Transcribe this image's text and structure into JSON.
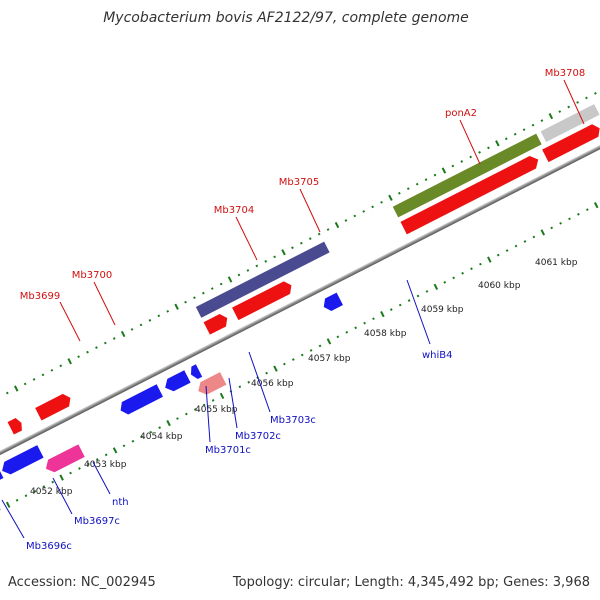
{
  "header": {
    "title": "Mycobacterium bovis AF2122/97, complete genome"
  },
  "footer": {
    "accession": "Accession: NC_002945",
    "summary": "Topology: circular; Length: 4,345,492 bp; Genes: 3,968"
  },
  "colors": {
    "forward_gene": "#ee1111",
    "reverse_gene": "#1a1aee",
    "rna_gene": "#ee3399",
    "pseudo_gene": "#ee8888",
    "operon_purple": "#4a4a90",
    "operon_olive": "#6a8a28",
    "grey_feature": "#c8c8c8",
    "backbone": "#888888",
    "tick": "#1a7a1a",
    "forward_label": "#d01010",
    "reverse_label": "#1010c0"
  },
  "scale": {
    "kbp_labels": [
      "4052 kbp",
      "4053 kbp",
      "4054 kbp",
      "4055 kbp",
      "4056 kbp",
      "4057 kbp",
      "4058 kbp",
      "4059 kbp",
      "4060 kbp",
      "4061 kbp"
    ]
  },
  "genes": {
    "forward_labels": [
      "Mb3699",
      "Mb3700",
      "Mb3704",
      "Mb3705",
      "ponA2",
      "Mb3708"
    ],
    "reverse_labels": [
      "Mb3696c",
      "Mb3697c",
      "nth",
      "Mb3701c",
      "Mb3702c",
      "Mb3703c",
      "whiB4"
    ]
  }
}
